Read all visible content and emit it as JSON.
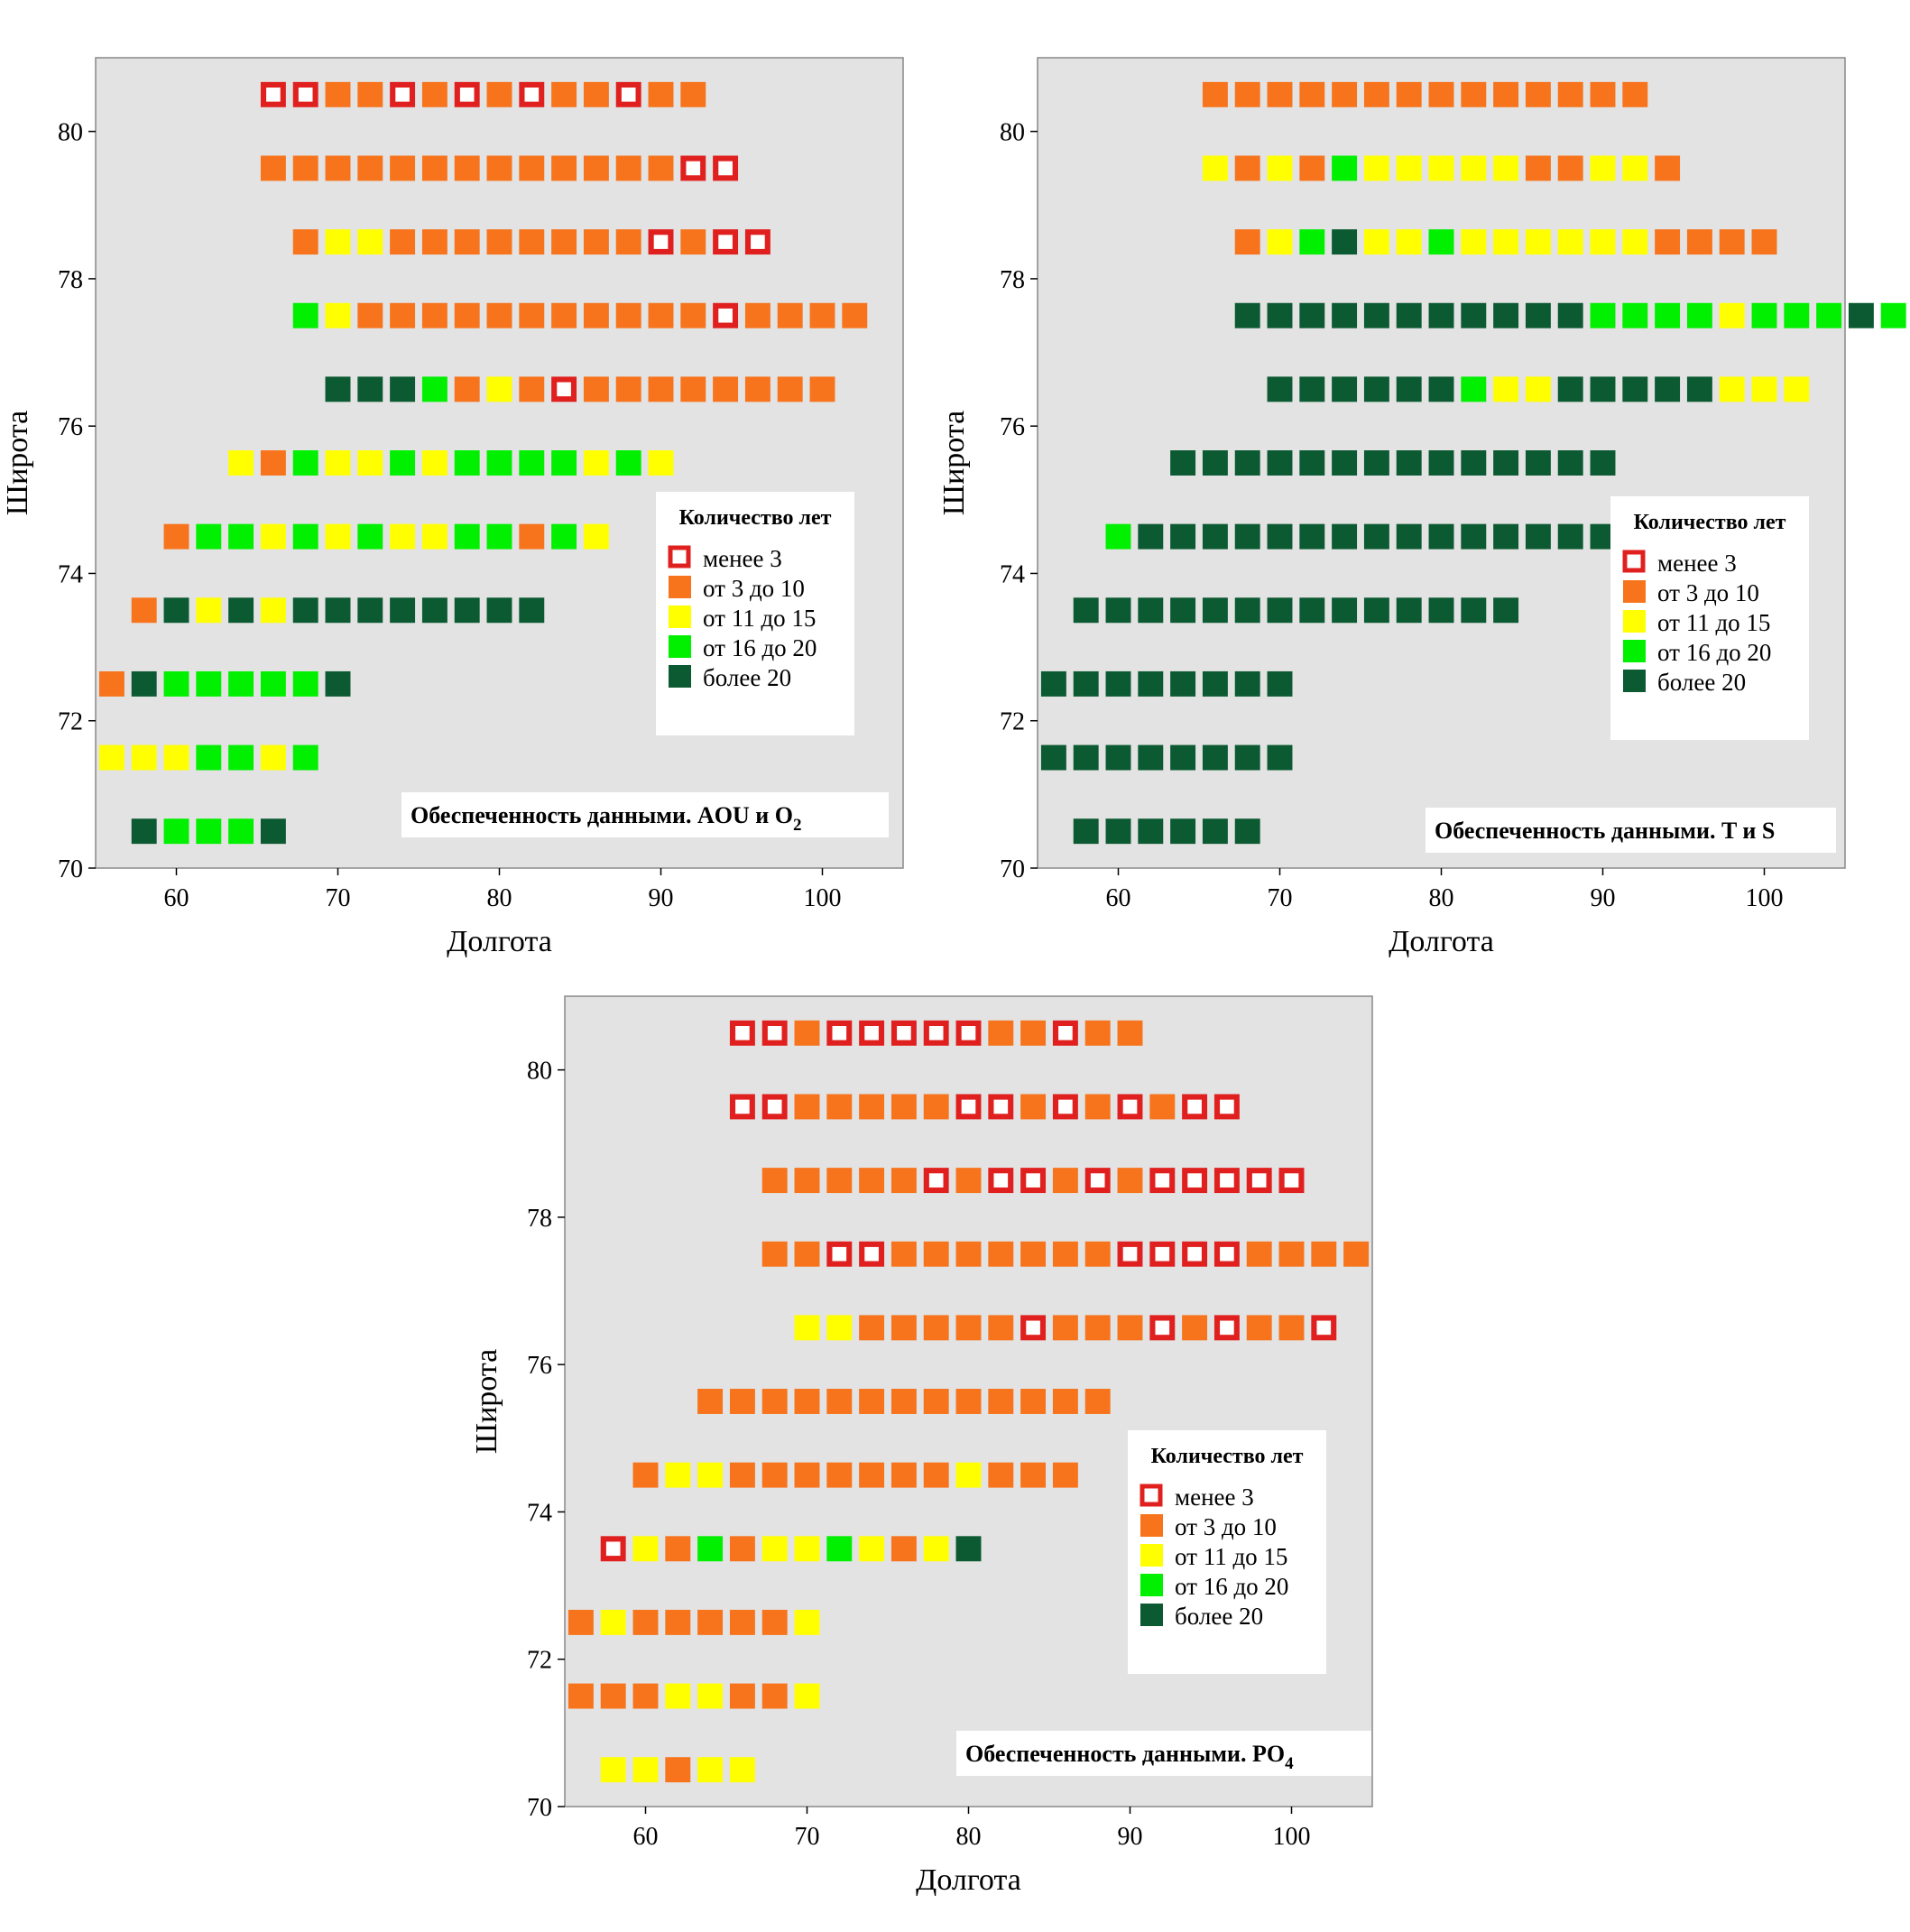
{
  "colors": {
    "ocean": "#e3e3e3",
    "land": "#b0b0b0",
    "lt3_border": "#e0201e",
    "c3_10": "#f7741c",
    "c11_15": "#ffff00",
    "c16_20": "#00f000",
    "gt20": "#0b5a32"
  },
  "x_ticks": [
    "60",
    "70",
    "80",
    "90",
    "100"
  ],
  "y_ticks": [
    "70",
    "72",
    "74",
    "76",
    "78",
    "80"
  ],
  "xlabel": "Долгота",
  "ylabel": "Широта",
  "legend": {
    "title": "Количество лет",
    "items": [
      {
        "key": "a",
        "label": "менее 3"
      },
      {
        "key": "b",
        "label": "от 3 до 10"
      },
      {
        "key": "c",
        "label": "от 11 до 15"
      },
      {
        "key": "d",
        "label": "от 16 до 20"
      },
      {
        "key": "e",
        "label": "более 20"
      }
    ]
  },
  "panels": [
    {
      "id": "aou",
      "caption": "Обеспеченность данными. AOU и O",
      "caption_sub": "2",
      "chart_data": {
        "type": "heatmap",
        "xlim": [
          55,
          105
        ],
        "ylim": [
          70,
          81
        ],
        "xlabel": "Долгота",
        "ylabel": "Широта",
        "x_step": 2,
        "rows": [
          {
            "lat": 80.5,
            "lon_start": 66,
            "codes": "aabbabababbabb"
          },
          {
            "lat": 79.5,
            "lon_start": 66,
            "codes": "bbbbbbbbbbbbbaa"
          },
          {
            "lat": 78.5,
            "lon_start": 68,
            "codes": "bccbbbbbbbbabaa"
          },
          {
            "lat": 77.5,
            "lon_start": 68,
            "codes": "dcbbbbbbbbbbbabbbb"
          },
          {
            "lat": 76.5,
            "lon_start": 70,
            "codes": "eeedbcbabbbbbbbb"
          },
          {
            "lat": 75.5,
            "lon_start": 64,
            "codes": "cbdccdcddddcdc"
          },
          {
            "lat": 74.5,
            "lon_start": 60,
            "codes": "bddcdcdccddbdc"
          },
          {
            "lat": 73.5,
            "lon_start": 58,
            "codes": "bececeeeeeeee"
          },
          {
            "lat": 72.5,
            "lon_start": 56,
            "codes": "beddddde"
          },
          {
            "lat": 71.5,
            "lon_start": 56,
            "codes": "cccddcd"
          },
          {
            "lat": 70.5,
            "lon_start": 58,
            "codes": "eddde"
          }
        ]
      }
    },
    {
      "id": "ts",
      "caption": "Обеспеченность данными. T и S",
      "caption_sub": "",
      "chart_data": {
        "type": "heatmap",
        "xlim": [
          55,
          105
        ],
        "ylim": [
          70,
          81
        ],
        "xlabel": "Долгота",
        "ylabel": "Широта",
        "x_step": 2,
        "rows": [
          {
            "lat": 80.5,
            "lon_start": 66,
            "codes": "bbbbbbbbbbbbbb"
          },
          {
            "lat": 79.5,
            "lon_start": 66,
            "codes": "cbcbdcccccbbccb"
          },
          {
            "lat": 78.5,
            "lon_start": 68,
            "codes": "bcdeccdccccccbbbb"
          },
          {
            "lat": 77.5,
            "lon_start": 68,
            "codes": "eeeeeeeeeeeddddcddded"
          },
          {
            "lat": 76.5,
            "lon_start": 70,
            "codes": "eeeeeedcceeeeeccc"
          },
          {
            "lat": 75.5,
            "lon_start": 64,
            "codes": "eeeeeeeeeeeeee"
          },
          {
            "lat": 74.5,
            "lon_start": 60,
            "codes": "deeeeeeeeeeeeeee"
          },
          {
            "lat": 73.5,
            "lon_start": 58,
            "codes": "eeeeeeeeeeeeee"
          },
          {
            "lat": 72.5,
            "lon_start": 56,
            "codes": "eeeeeeee"
          },
          {
            "lat": 71.5,
            "lon_start": 56,
            "codes": "eeeeeeee"
          },
          {
            "lat": 70.5,
            "lon_start": 58,
            "codes": "eeeeee"
          }
        ]
      }
    },
    {
      "id": "po4",
      "caption": "Обеспеченность данными. PO",
      "caption_sub": "4",
      "chart_data": {
        "type": "heatmap",
        "xlim": [
          55,
          105
        ],
        "ylim": [
          70,
          81
        ],
        "xlabel": "Долгота",
        "ylabel": "Широта",
        "x_step": 2,
        "rows": [
          {
            "lat": 80.5,
            "lon_start": 66,
            "codes": "aabaaaaabbabb"
          },
          {
            "lat": 79.5,
            "lon_start": 66,
            "codes": "aabbbbbaabababaa"
          },
          {
            "lat": 78.5,
            "lon_start": 68,
            "codes": "bbbbbabaababaaaaa"
          },
          {
            "lat": 77.5,
            "lon_start": 68,
            "codes": "bbaabbbbbbbaaaabbbb"
          },
          {
            "lat": 76.5,
            "lon_start": 70,
            "codes": "ccbbbbbabbbababba"
          },
          {
            "lat": 75.5,
            "lon_start": 64,
            "codes": "bbbbbbbbbbbbb"
          },
          {
            "lat": 74.5,
            "lon_start": 60,
            "codes": "bccbbbbbbbcbbb"
          },
          {
            "lat": 73.5,
            "lon_start": 58,
            "codes": "acbdbccdcbce"
          },
          {
            "lat": 72.5,
            "lon_start": 56,
            "codes": "bcbbbbbc"
          },
          {
            "lat": 71.5,
            "lon_start": 56,
            "codes": "bbbccbbc"
          },
          {
            "lat": 70.5,
            "lon_start": 58,
            "codes": "ccbcc"
          }
        ]
      }
    }
  ]
}
